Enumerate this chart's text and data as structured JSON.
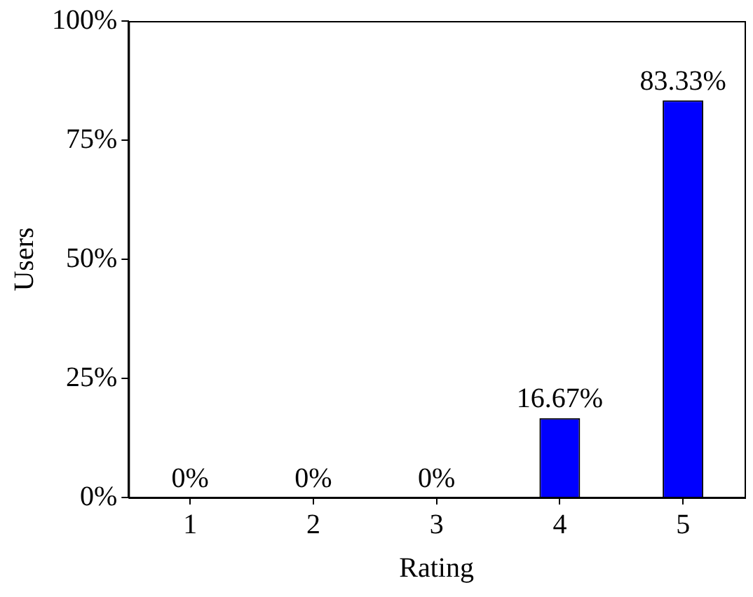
{
  "chart_data": {
    "type": "bar",
    "xlabel": "Rating",
    "ylabel": "Users",
    "categories": [
      "1",
      "2",
      "3",
      "4",
      "5"
    ],
    "values": [
      0,
      0,
      0,
      16.67,
      83.33
    ],
    "value_labels": [
      "0%",
      "0%",
      "0%",
      "16.67%",
      "83.33%"
    ],
    "color": "#0000ff",
    "ylim": [
      0,
      100
    ],
    "yticks": [
      {
        "value": 0,
        "label": "0%"
      },
      {
        "value": 25,
        "label": "25%"
      },
      {
        "value": 50,
        "label": "50%"
      },
      {
        "value": 75,
        "label": "75%"
      },
      {
        "value": 100,
        "label": "100%"
      }
    ],
    "grid": false,
    "legend": false
  }
}
